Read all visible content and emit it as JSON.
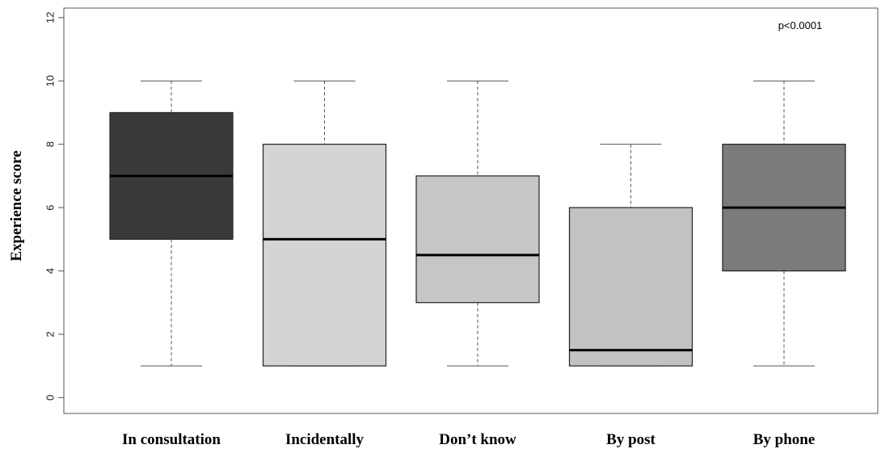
{
  "chart_data": {
    "type": "boxplot",
    "title": "",
    "xlabel": "",
    "ylabel": "Experience score",
    "ylim": [
      -0.5,
      12.3
    ],
    "yticks": [
      0,
      2,
      4,
      6,
      8,
      10,
      12
    ],
    "annotation": "p<0.0001",
    "grid": false,
    "legend": "none",
    "categories": [
      "In consultation",
      "Incidentally",
      "Don’t know",
      "By post",
      "By phone"
    ],
    "boxes": [
      {
        "category": "In consultation",
        "min": 1,
        "q1": 5,
        "median": 7,
        "q3": 9,
        "max": 10,
        "color": "#3a3a3a"
      },
      {
        "category": "Incidentally",
        "min": 1,
        "q1": 1,
        "median": 5,
        "q3": 8,
        "max": 10,
        "color": "#d4d4d4"
      },
      {
        "category": "Don’t know",
        "min": 1,
        "q1": 3,
        "median": 4.5,
        "q3": 7,
        "max": 10,
        "color": "#c6c6c6"
      },
      {
        "category": "By post",
        "min": 1,
        "q1": 1,
        "median": 1.5,
        "q3": 6,
        "max": 8,
        "color": "#c2c2c2"
      },
      {
        "category": "By phone",
        "min": 1,
        "q1": 4,
        "median": 6,
        "q3": 8,
        "max": 10,
        "color": "#7b7b7b"
      }
    ]
  }
}
